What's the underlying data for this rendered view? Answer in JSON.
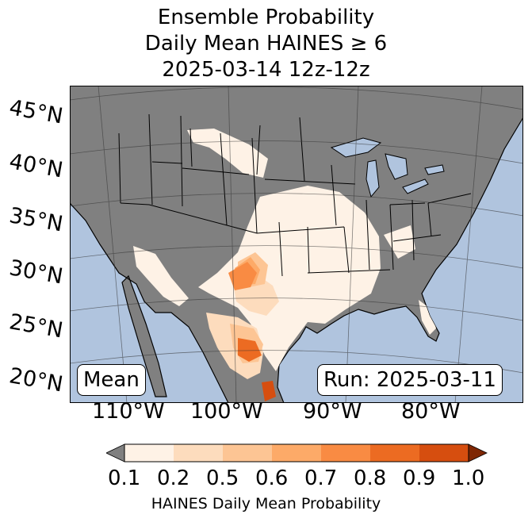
{
  "title": {
    "line1": "Ensemble Probability",
    "line2": "Daily Mean HAINES ≥ 6",
    "line3": "2025-03-14 12z-12z"
  },
  "lat_labels": [
    "45°N",
    "40°N",
    "35°N",
    "30°N",
    "25°N",
    "20°N"
  ],
  "lon_labels": [
    "110°W",
    "100°W",
    "90°W",
    "80°W"
  ],
  "mean_label": "Mean",
  "run_label": "Run: 2025-03-11",
  "colorbar": {
    "ticks": [
      "0.1",
      "0.2",
      "0.5",
      "0.6",
      "0.7",
      "0.8",
      "0.9",
      "1.0"
    ],
    "label": "HAINES Daily Mean Probability",
    "colors": [
      "#fef2e6",
      "#fddcbd",
      "#fdc594",
      "#fdaa68",
      "#f98b43",
      "#ec6b22",
      "#d64e0f"
    ],
    "under_color": "#808080",
    "over_color": "#7f2704"
  },
  "map_colors": {
    "ocean": "#b0c4de",
    "land": "#808080",
    "lakes": "#b0c4de"
  }
}
